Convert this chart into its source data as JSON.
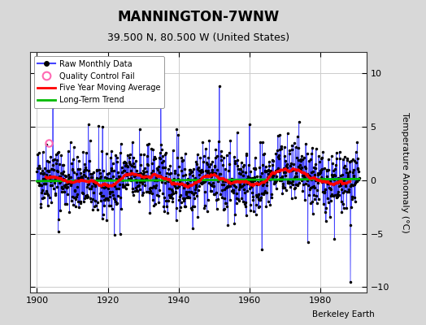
{
  "title": "MANNINGTON-7WNW",
  "subtitle": "39.500 N, 80.500 W (United States)",
  "ylabel": "Temperature Anomaly (°C)",
  "attribution": "Berkeley Earth",
  "xlim": [
    1898,
    1993
  ],
  "ylim": [
    -10.5,
    12
  ],
  "yticks": [
    -10,
    -5,
    0,
    5,
    10
  ],
  "xticks": [
    1900,
    1920,
    1940,
    1960,
    1980
  ],
  "x_start": 1900.0,
  "x_end": 1990.917,
  "n_months": 1090,
  "seed": 42,
  "fig_bg_color": "#d8d8d8",
  "plot_bg_color": "#ffffff",
  "raw_line_color": "#4444ff",
  "raw_dot_color": "#000000",
  "moving_avg_color": "#ff0000",
  "trend_color": "#00bb00",
  "qc_fail_color": "#ff69b4",
  "qc_year": 1903.25,
  "qc_val": 3.5,
  "legend_loc": "upper left",
  "title_fontsize": 12,
  "subtitle_fontsize": 9,
  "ylabel_fontsize": 8,
  "tick_labelsize": 8
}
